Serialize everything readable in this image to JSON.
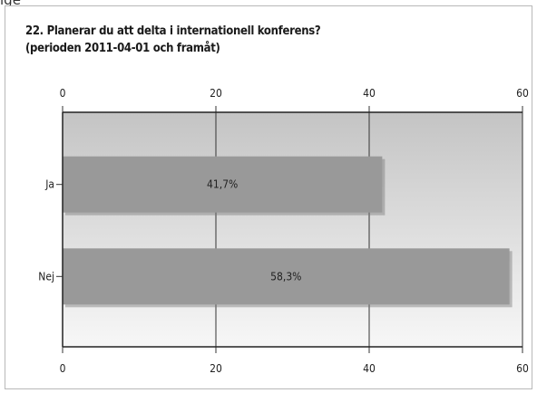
{
  "page": {
    "top_word": "ige"
  },
  "chart_data": {
    "type": "bar",
    "orientation": "horizontal",
    "title": "22. Planerar du att delta i internationell konferens?",
    "subtitle": "(perioden 2011-04-01 och framåt)",
    "categories": [
      "Ja",
      "Nej"
    ],
    "values": [
      41.7,
      58.3
    ],
    "value_labels": [
      "41,7%",
      "58,3%"
    ],
    "xlim": [
      0,
      60
    ],
    "xticks": [
      "0",
      "20",
      "40",
      "60"
    ],
    "xlabel": "",
    "ylabel": "",
    "grid": true,
    "legend": "none",
    "colors": {
      "bar": "#999999",
      "bar_shadow": "#7a7a7a",
      "plot_top": "#c4c4c4",
      "plot_bottom": "#f7f7f7",
      "gridline": "#333333"
    }
  }
}
